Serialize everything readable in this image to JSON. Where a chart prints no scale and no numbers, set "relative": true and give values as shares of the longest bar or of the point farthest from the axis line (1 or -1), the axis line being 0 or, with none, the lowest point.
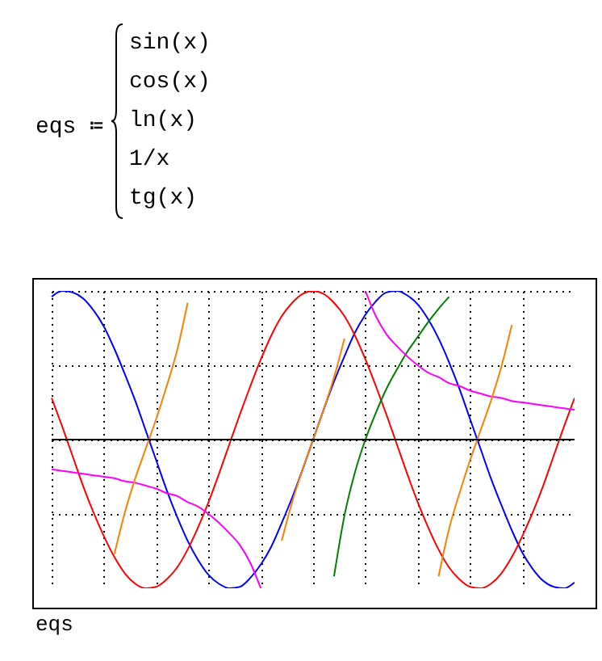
{
  "chart_data": {
    "type": "line",
    "title": "eqs ≔",
    "xlabel": "eqs",
    "relative": true,
    "grid": true,
    "annotations": [
      "sin(x)",
      "cos(x)",
      "ln(x)",
      "1/x",
      "tg(x)"
    ],
    "categories": [
      null,
      null,
      null,
      null,
      null,
      null,
      null,
      null,
      null,
      null,
      null,
      null,
      null,
      null,
      null,
      null,
      null,
      null,
      null,
      null,
      null,
      null,
      null,
      null,
      null,
      null,
      null,
      null,
      null,
      null,
      null,
      null,
      null,
      null,
      null,
      null,
      null,
      null,
      null,
      null,
      null,
      null,
      null,
      null,
      null,
      null,
      null,
      null,
      null,
      null,
      null
    ],
    "ref_lines": [
      {
        "axis": "y",
        "value": 0,
        "color": "#000000"
      }
    ],
    "series": [
      {
        "color": "#0000ff",
        "values": [
          0.96,
          1.0,
          0.99,
          0.95,
          0.87,
          0.76,
          0.61,
          0.44,
          0.26,
          0.06,
          -0.14,
          -0.34,
          -0.52,
          -0.68,
          -0.81,
          -0.91,
          -0.97,
          -1.0,
          -0.99,
          -0.93,
          -0.84,
          -0.72,
          -0.56,
          -0.39,
          -0.2,
          0,
          0.2,
          0.39,
          0.56,
          0.72,
          0.84,
          0.93,
          0.99,
          1.0,
          0.97,
          0.91,
          0.81,
          0.68,
          0.52,
          0.34,
          0.14,
          -0.06,
          -0.26,
          -0.44,
          -0.61,
          -0.76,
          -0.87,
          -0.95,
          -0.99,
          -1.0,
          -0.96
        ]
      },
      {
        "color": "#ff0000",
        "values": [
          0.28,
          0.09,
          -0.11,
          -0.31,
          -0.49,
          -0.65,
          -0.79,
          -0.9,
          -0.97,
          -1.0,
          -0.99,
          -0.94,
          -0.86,
          -0.74,
          -0.59,
          -0.42,
          -0.23,
          -0.03,
          0.17,
          0.36,
          0.54,
          0.7,
          0.83,
          0.92,
          0.98,
          1,
          0.98,
          0.92,
          0.83,
          0.7,
          0.54,
          0.36,
          0.17,
          -0.03,
          -0.23,
          -0.42,
          -0.59,
          -0.74,
          -0.86,
          -0.94,
          -0.99,
          -1.0,
          -0.97,
          -0.9,
          -0.79,
          -0.65,
          -0.49,
          -0.31,
          -0.11,
          0.09,
          0.28
        ]
      },
      {
        "color": "#008000",
        "values": [
          null,
          null,
          null,
          null,
          null,
          null,
          null,
          null,
          null,
          null,
          null,
          null,
          null,
          null,
          null,
          null,
          null,
          null,
          null,
          null,
          null,
          null,
          null,
          null,
          null,
          null,
          null,
          -0.92,
          -0.51,
          -0.22,
          0,
          0.18,
          0.34,
          0.47,
          0.59,
          0.69,
          0.79,
          0.88,
          0.96,
          null,
          null,
          null,
          null,
          null,
          null,
          null,
          null,
          null,
          null,
          null,
          null
        ]
      },
      {
        "color": "#ff00ff",
        "values": [
          -0.2,
          -0.21,
          -0.22,
          -0.23,
          -0.24,
          -0.25,
          -0.26,
          -0.28,
          -0.29,
          -0.31,
          -0.33,
          -0.36,
          -0.38,
          -0.42,
          -0.45,
          -0.5,
          -0.56,
          -0.63,
          -0.71,
          -0.83,
          -1.0,
          null,
          null,
          null,
          null,
          null,
          null,
          null,
          null,
          null,
          1.0,
          0.83,
          0.71,
          0.63,
          0.56,
          0.5,
          0.45,
          0.42,
          0.38,
          0.36,
          0.33,
          0.31,
          0.29,
          0.28,
          0.26,
          0.25,
          0.24,
          0.23,
          0.22,
          0.21,
          0.2
        ]
      },
      {
        "color": "#ff8000",
        "values": [
          null,
          null,
          null,
          null,
          null,
          null,
          -0.77,
          -0.49,
          -0.26,
          -0.06,
          0.14,
          0.36,
          0.6,
          0.92,
          null,
          null,
          null,
          null,
          null,
          null,
          null,
          null,
          -0.68,
          -0.42,
          -0.2,
          0,
          0.2,
          0.42,
          0.68,
          null,
          null,
          null,
          null,
          null,
          null,
          null,
          null,
          -0.92,
          -0.6,
          -0.36,
          -0.14,
          0.06,
          0.26,
          0.49,
          0.77,
          null,
          null,
          null,
          null,
          null,
          null
        ]
      }
    ]
  }
}
